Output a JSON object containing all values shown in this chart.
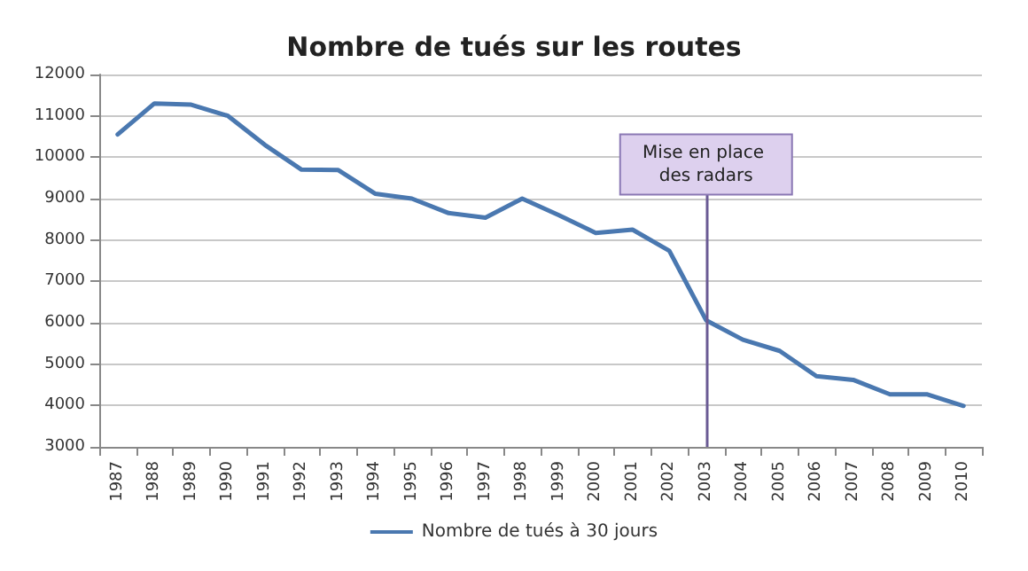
{
  "chart_data": {
    "type": "line",
    "title": "Nombre de tués sur les routes",
    "categories": [
      "1987",
      "1988",
      "1989",
      "1990",
      "1991",
      "1992",
      "1993",
      "1994",
      "1995",
      "1996",
      "1997",
      "1998",
      "1999",
      "2000",
      "2001",
      "2002",
      "2003",
      "2004",
      "2005",
      "2006",
      "2007",
      "2008",
      "2009",
      "2010"
    ],
    "series": [
      {
        "name": "Nombre de tués à 30 jours",
        "color": "#4a78b0",
        "values": [
          10550,
          11300,
          11270,
          11000,
          10300,
          9700,
          9690,
          9120,
          9000,
          8650,
          8540,
          9000,
          8600,
          8170,
          8250,
          7740,
          6060,
          5590,
          5320,
          4710,
          4620,
          4270,
          4270,
          3990
        ]
      }
    ],
    "ylim": [
      3000,
      12000
    ],
    "yticks": [
      3000,
      4000,
      5000,
      6000,
      7000,
      8000,
      9000,
      10000,
      11000,
      12000
    ],
    "ref_lines": [
      {
        "axis": "x",
        "value": "2003",
        "label": "Mise en place des radars",
        "color": "#6a5a94"
      }
    ],
    "grid": "y",
    "legend": "bottom",
    "marker": "none",
    "line_style": "solid"
  }
}
